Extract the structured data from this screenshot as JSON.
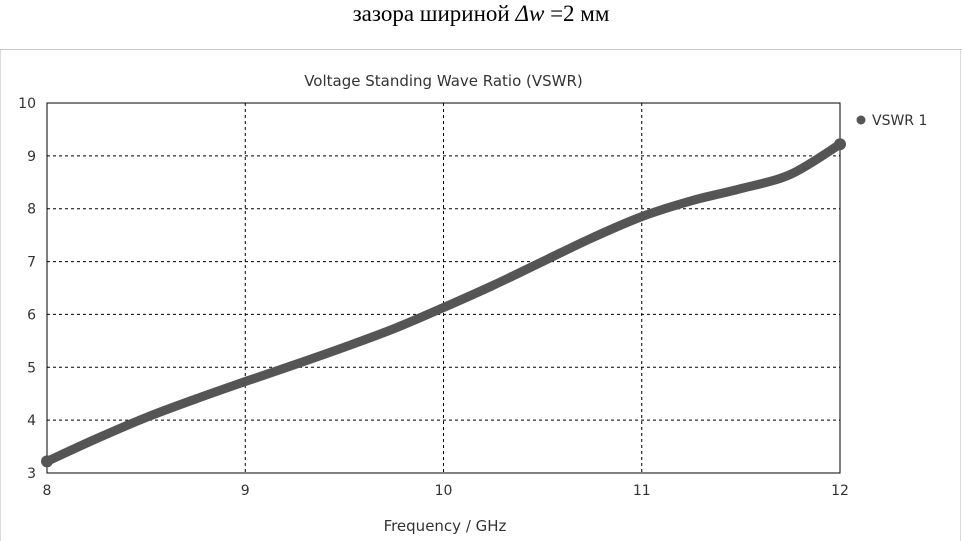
{
  "caption": {
    "prefix": "зазора шириной ",
    "symbol": "Δw",
    "suffix": " =2 мм"
  },
  "chart_data": {
    "type": "line",
    "title": "Voltage Standing Wave Ratio (VSWR)",
    "xlabel": "Frequency / GHz",
    "ylabel": "",
    "xlim": [
      8,
      12
    ],
    "ylim": [
      3,
      10
    ],
    "x_ticks": [
      "8",
      "9",
      "10",
      "11",
      "12"
    ],
    "y_ticks": [
      "3",
      "4",
      "5",
      "6",
      "7",
      "8",
      "9",
      "10"
    ],
    "grid": true,
    "legend_position": "top-right",
    "series": [
      {
        "name": "VSWR 1",
        "color": "#555555",
        "x": [
          8.0,
          8.25,
          8.5,
          8.75,
          9.0,
          9.25,
          9.5,
          9.75,
          10.0,
          10.25,
          10.5,
          10.75,
          11.0,
          11.25,
          11.5,
          11.75,
          12.0
        ],
        "y": [
          3.22,
          3.65,
          4.05,
          4.4,
          4.73,
          5.05,
          5.38,
          5.73,
          6.13,
          6.55,
          7.0,
          7.45,
          7.85,
          8.15,
          8.38,
          8.65,
          9.22
        ]
      }
    ]
  }
}
